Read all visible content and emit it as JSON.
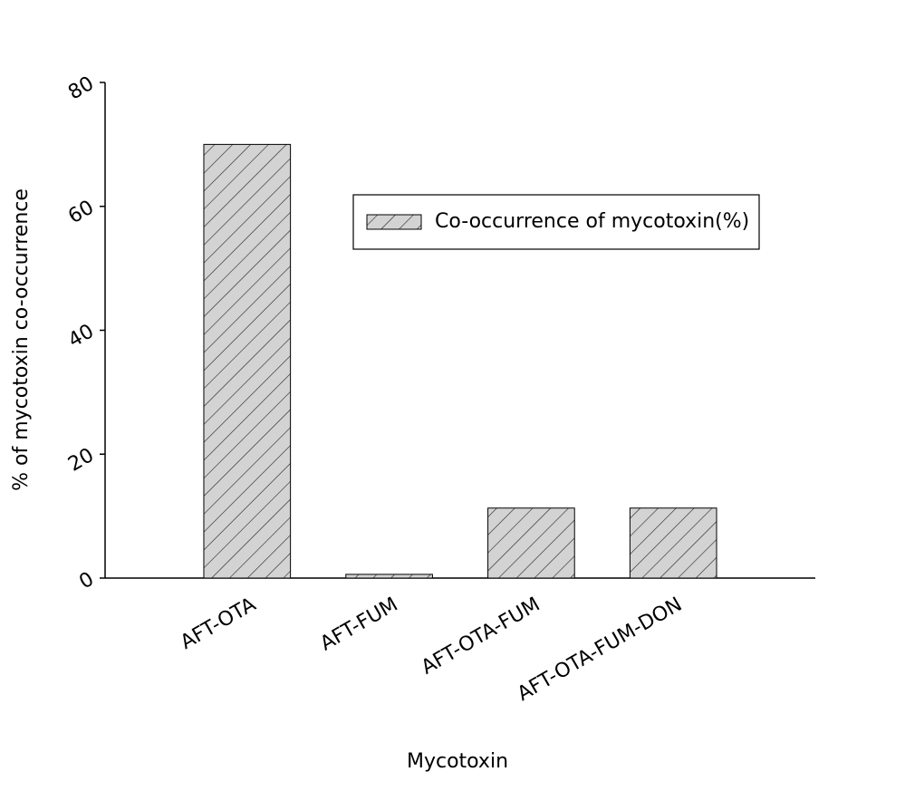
{
  "chart_data": {
    "type": "bar",
    "x_label": "Mycotoxin",
    "y_label": "% of mycotoxin co-occurrence",
    "categories": [
      "AFT-OTA",
      "AFT-FUM",
      "AFT-OTA-FUM",
      "AFT-OTA-FUM-DON"
    ],
    "series": [
      {
        "name": "Co-occurrence of mycotoxin(%)",
        "color": "#d3d3d3",
        "values": [
          70,
          0.6,
          11.3,
          11.3
        ]
      }
    ],
    "ylim": [
      0,
      80
    ],
    "yticks": [
      0,
      20,
      40,
      60,
      80
    ],
    "grid": false,
    "legend": "upper right"
  }
}
